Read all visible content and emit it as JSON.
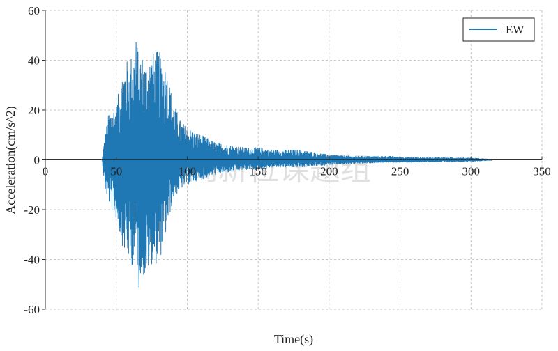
{
  "chart_data": {
    "type": "line",
    "title": "",
    "xlabel": "Time(s)",
    "ylabel": "Acceleration(cm/s^2)",
    "xlim": [
      0,
      350
    ],
    "ylim": [
      -60,
      60
    ],
    "x_ticks": [
      0,
      50,
      100,
      150,
      200,
      250,
      300,
      350
    ],
    "y_ticks": [
      60,
      40,
      20,
      0,
      -20,
      -40,
      -60
    ],
    "grid": true,
    "legend_position": "top-right",
    "series": [
      {
        "name": "EW",
        "color": "#1f77b4",
        "envelope": {
          "x": [
            0,
            40,
            42,
            45,
            50,
            55,
            60,
            65,
            70,
            75,
            80,
            85,
            90,
            95,
            100,
            110,
            120,
            130,
            140,
            150,
            160,
            170,
            180,
            190,
            200,
            220,
            240,
            260,
            280,
            300,
            315
          ],
          "max": [
            0,
            0,
            10,
            20,
            22,
            38,
            42,
            47,
            40,
            43,
            44,
            38,
            24,
            16,
            13,
            10,
            7,
            6,
            5,
            5,
            4,
            4,
            4,
            3,
            2,
            1.5,
            1.5,
            1,
            1,
            0.8,
            0.2
          ],
          "min": [
            0,
            0,
            -12,
            -18,
            -24,
            -36,
            -42,
            -44,
            -48,
            -42,
            -42,
            -30,
            -16,
            -12,
            -10,
            -8,
            -6,
            -5,
            -4,
            -4,
            -3,
            -3,
            -3,
            -2.5,
            -2,
            -1.5,
            -1,
            -1,
            -0.8,
            -0.6,
            -0.2
          ]
        },
        "peak_max": {
          "x": 64,
          "y": 47
        },
        "peak_min": {
          "x": 66,
          "y": -51
        }
      }
    ]
  },
  "watermark": "阎新位课题组"
}
